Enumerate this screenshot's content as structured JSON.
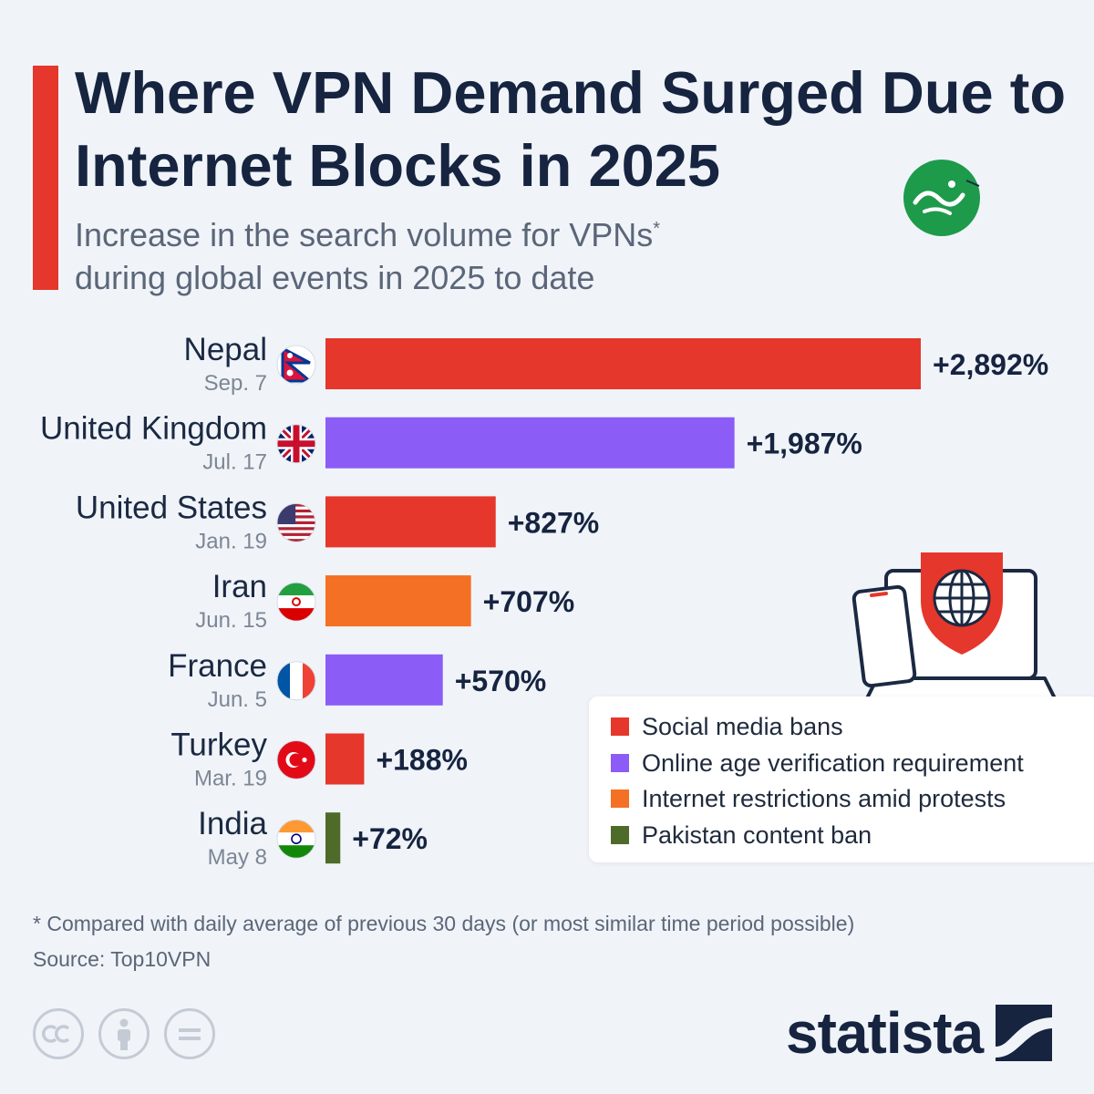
{
  "header": {
    "title": "Where VPN Demand Surged Due to Internet Blocks in 2025",
    "subtitle": "Increase in the search volume for VPNs",
    "subtitle_marker": "*",
    "subtitle_line2": "during global events in 2025 to date"
  },
  "colors": {
    "accent": "#e5372b",
    "social_media_bans": "#e5372b",
    "age_verification": "#8b5cf6",
    "protests": "#f47024",
    "pakistan": "#4f6b2a",
    "text_dark": "#162440",
    "text_muted": "#7d8694"
  },
  "chart_data": {
    "type": "bar",
    "orientation": "horizontal",
    "categories": [
      "Nepal",
      "United Kingdom",
      "United States",
      "Iran",
      "France",
      "Turkey",
      "India"
    ],
    "dates": [
      "Sep. 7",
      "Jul. 17",
      "Jan. 19",
      "Jun. 15",
      "Jun. 5",
      "Mar. 19",
      "May 8"
    ],
    "values": [
      2892,
      1987,
      827,
      707,
      570,
      188,
      72
    ],
    "value_labels": [
      "+2,892%",
      "+1,987%",
      "+827%",
      "+707%",
      "+570%",
      "+188%",
      "+72%"
    ],
    "event_types": [
      "Social media bans",
      "Online age verification requirement",
      "Social media bans",
      "Internet restrictions amid protests",
      "Online age verification requirement",
      "Social media bans",
      "Pakistan content ban"
    ],
    "flag_icons": [
      "nepal-flag-icon",
      "uk-flag-icon",
      "us-flag-icon",
      "iran-flag-icon",
      "france-flag-icon",
      "turkey-flag-icon",
      "india-flag-icon"
    ],
    "unit": "%",
    "grid": false,
    "legend_position": "bottom-right",
    "legend": [
      {
        "label": "Social media bans",
        "color": "#e5372b"
      },
      {
        "label": "Online age verification requirement",
        "color": "#8b5cf6"
      },
      {
        "label": "Internet restrictions amid protests",
        "color": "#f47024"
      },
      {
        "label": "Pakistan content ban",
        "color": "#4f6b2a"
      }
    ]
  },
  "footer": {
    "footnote": "* Compared with daily average of previous 30 days (or most similar time period possible)",
    "source": "Source: Top10VPN",
    "brand": "statista",
    "license_icons": [
      "cc-icon",
      "by-icon",
      "nd-icon"
    ]
  },
  "illustration_icons": [
    "smartphone-icon",
    "laptop-icon",
    "shield-globe-icon"
  ],
  "site_logo_icon": "site-logo-icon"
}
